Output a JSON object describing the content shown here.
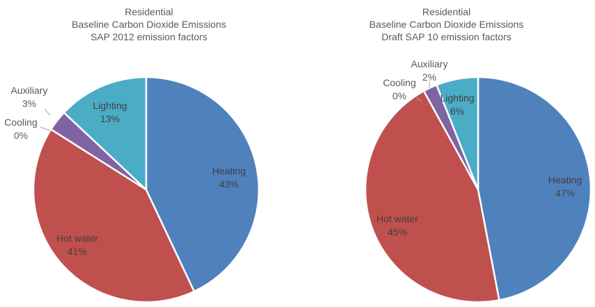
{
  "chart_data": [
    {
      "type": "pie",
      "title": [
        "Residential",
        "Baseline Carbon Dioxide Emissions",
        "SAP 2012 emission factors"
      ],
      "start_angle_deg": 0,
      "direction": "clockwise",
      "slices": [
        {
          "label": "Heating",
          "value": 43,
          "value_label": "43%",
          "color": "#4f81bd",
          "label_position": "inside"
        },
        {
          "label": "Hot water",
          "value": 41,
          "value_label": "41%",
          "color": "#c0504d",
          "label_position": "inside"
        },
        {
          "label": "Cooling",
          "value": 0,
          "value_label": "0%",
          "color": "#9bbb59",
          "label_position": "outside"
        },
        {
          "label": "Auxiliary",
          "value": 3,
          "value_label": "3%",
          "color": "#8064a2",
          "label_position": "outside"
        },
        {
          "label": "Lighting",
          "value": 13,
          "value_label": "13%",
          "color": "#4bacc6",
          "label_position": "inside"
        }
      ],
      "legend": "none"
    },
    {
      "type": "pie",
      "title": [
        "Residential",
        "Baseline Carbon Dioxide Emissions",
        "Draft SAP 10 emission factors"
      ],
      "start_angle_deg": 0,
      "direction": "clockwise",
      "slices": [
        {
          "label": "Heating",
          "value": 47,
          "value_label": "47%",
          "color": "#4f81bd",
          "label_position": "inside"
        },
        {
          "label": "Hot water",
          "value": 45,
          "value_label": "45%",
          "color": "#c0504d",
          "label_position": "inside"
        },
        {
          "label": "Cooling",
          "value": 0,
          "value_label": "0%",
          "color": "#9bbb59",
          "label_position": "outside"
        },
        {
          "label": "Auxiliary",
          "value": 2,
          "value_label": "2%",
          "color": "#8064a2",
          "label_position": "outside"
        },
        {
          "label": "Lighting",
          "value": 6,
          "value_label": "6%",
          "color": "#4bacc6",
          "label_position": "inside"
        }
      ],
      "legend": "none"
    }
  ]
}
